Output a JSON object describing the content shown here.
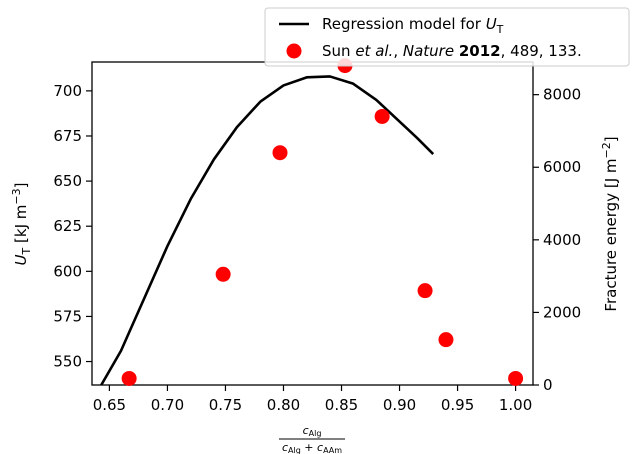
{
  "chart_data": {
    "type": "line+scatter",
    "xlim": [
      0.635,
      1.015
    ],
    "x_ticks": [
      0.65,
      0.7,
      0.75,
      0.8,
      0.85,
      0.9,
      0.95,
      1.0
    ],
    "x_tick_labels": [
      "0.65",
      "0.70",
      "0.75",
      "0.80",
      "0.85",
      "0.90",
      "0.95",
      "1.00"
    ],
    "xlabel": {
      "numerator": "c",
      "numerator_sub": "Alg",
      "denominator_1": "c",
      "denominator_1_sub": "Alg",
      "plus": " + ",
      "denominator_2": "c",
      "denominator_2_sub": "AAm"
    },
    "left_axis": {
      "ylim": [
        537,
        716
      ],
      "ticks": [
        550,
        575,
        600,
        625,
        650,
        675,
        700
      ],
      "label_main": "U",
      "label_sub": "T",
      "label_unit": " [kJ m",
      "label_exp": "−3",
      "label_close": "]"
    },
    "right_axis": {
      "ylim": [
        0,
        8900
      ],
      "ticks": [
        0,
        2000,
        4000,
        6000,
        8000
      ],
      "label_text": "Fracture energy [J m",
      "label_exp": "−2",
      "label_close": "]"
    },
    "series": [
      {
        "name": "Regression model for U_T",
        "axis": "left",
        "kind": "line",
        "color": "#000000",
        "x": [
          0.643,
          0.66,
          0.68,
          0.7,
          0.72,
          0.74,
          0.76,
          0.78,
          0.8,
          0.82,
          0.84,
          0.86,
          0.88,
          0.9,
          0.915,
          0.929
        ],
        "y": [
          537,
          556,
          585,
          614,
          640,
          662,
          680,
          694,
          703,
          707.5,
          708,
          704,
          695,
          683,
          674,
          665
        ]
      },
      {
        "name": "Sun et al., Nature 2012, 489, 133.",
        "axis": "right",
        "kind": "scatter",
        "color": "#ff0000",
        "x": [
          0.667,
          0.748,
          0.797,
          0.853,
          0.885,
          0.922,
          0.94,
          1.0
        ],
        "y": [
          180,
          3050,
          6400,
          8800,
          7400,
          2600,
          1250,
          180
        ]
      }
    ],
    "legend": {
      "position": "top-right",
      "line_entry": {
        "text": "Regression model for ",
        "math": "U",
        "math_sub": "T"
      },
      "scatter_entry": {
        "part1": "Sun ",
        "part2": "et al.",
        "part3": ", ",
        "part4": "Nature",
        "part5": " ",
        "part6": "2012",
        "part7": ", 489, 133."
      }
    }
  }
}
